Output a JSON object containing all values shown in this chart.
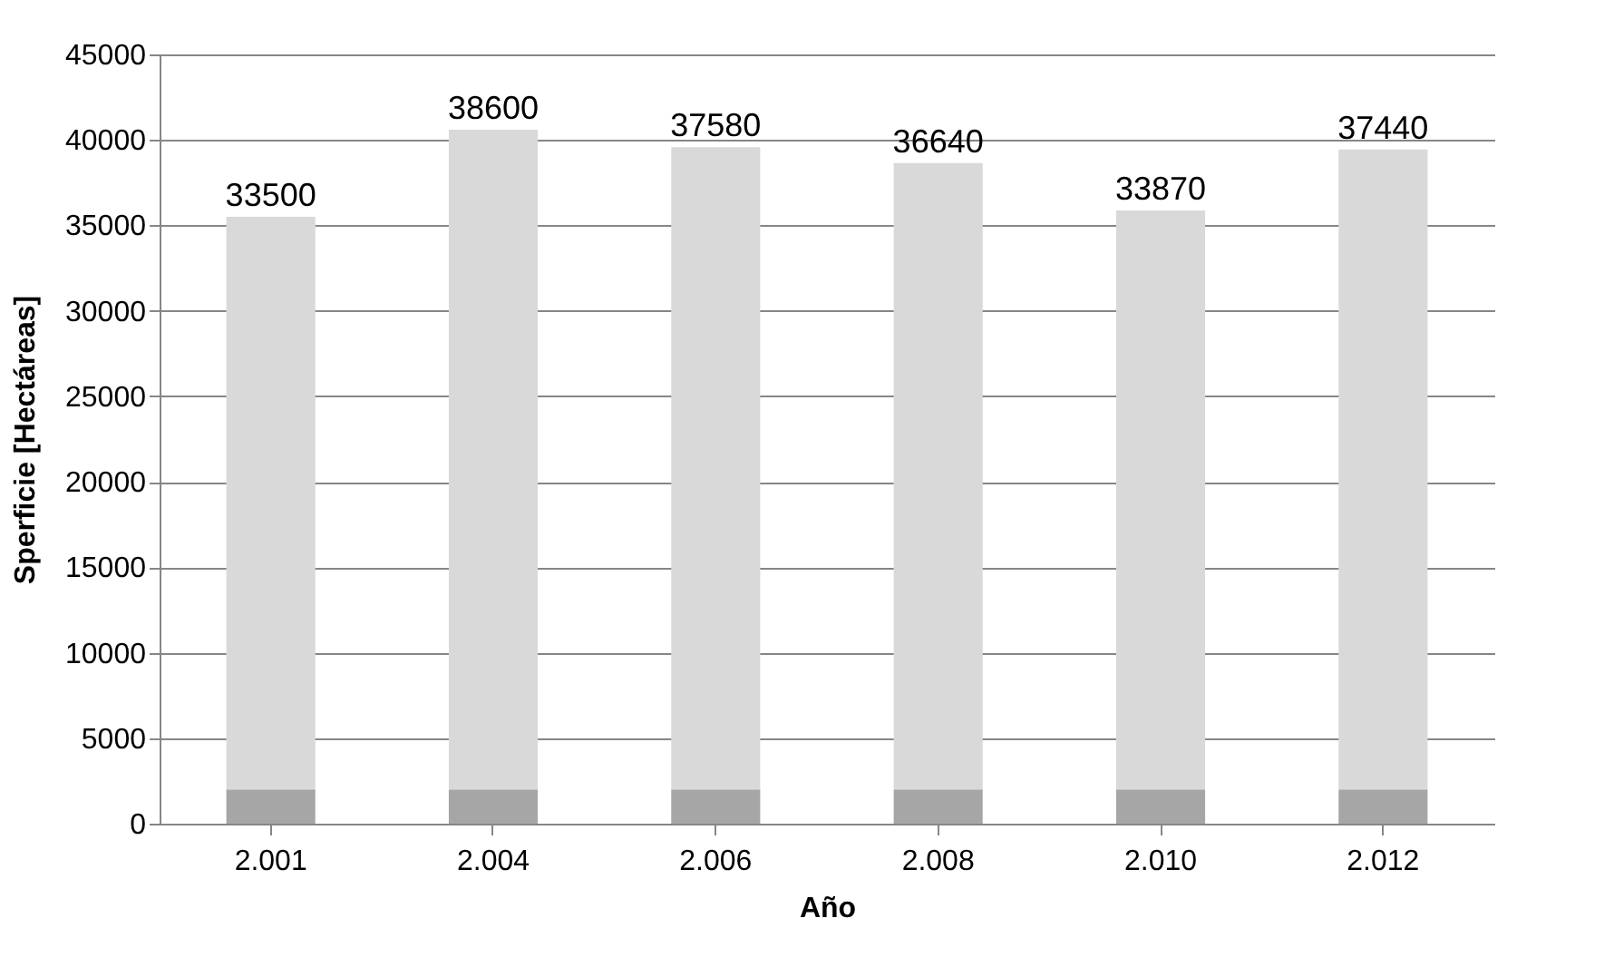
{
  "chart_data": {
    "type": "bar",
    "stacked": true,
    "xlabel": "Año",
    "ylabel": "Sperficie [Hectáreas]",
    "categories": [
      "2.001",
      "2.004",
      "2.006",
      "2.008",
      "2.010",
      "2.012"
    ],
    "series": [
      {
        "color": "#a6a6a6",
        "values": [
          2000,
          2000,
          2000,
          2000,
          2000,
          2000
        ]
      },
      {
        "color": "#d9d9d9",
        "values": [
          33500,
          38600,
          37580,
          36640,
          33870,
          37440
        ],
        "value_labels": [
          "33500",
          "38600",
          "37580",
          "36640",
          "33870",
          "37440"
        ]
      }
    ],
    "ylim": [
      0,
      45000
    ],
    "yticks": [
      0,
      5000,
      10000,
      15000,
      20000,
      25000,
      30000,
      35000,
      40000,
      45000
    ],
    "grid": "y",
    "legend": false
  }
}
